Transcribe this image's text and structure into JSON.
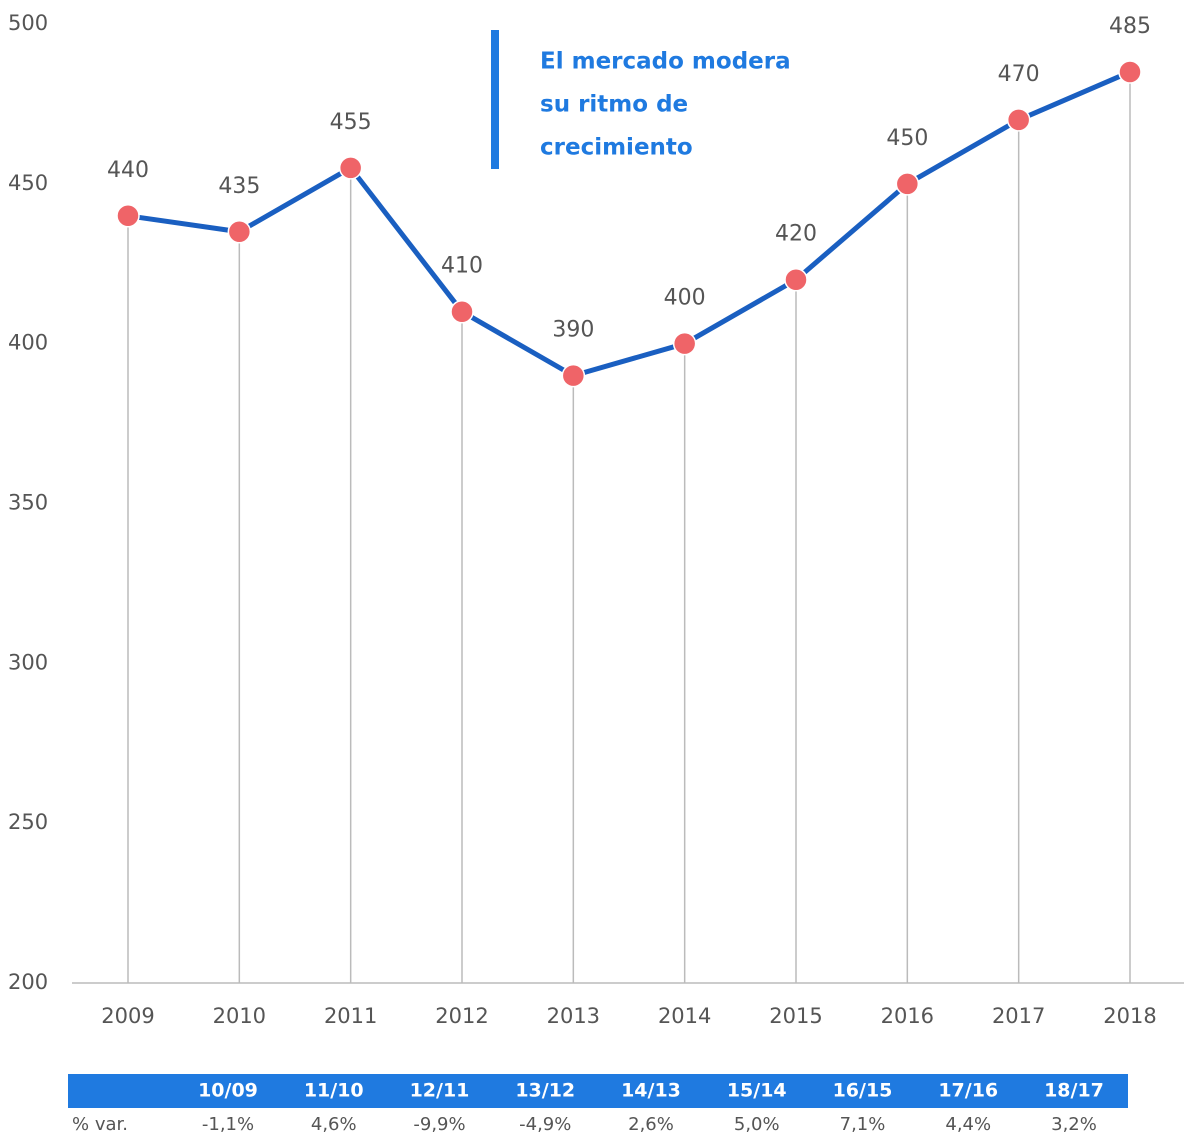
{
  "chart_data": {
    "type": "line",
    "categories": [
      "2009",
      "2010",
      "2011",
      "2012",
      "2013",
      "2014",
      "2015",
      "2016",
      "2017",
      "2018"
    ],
    "values": [
      440,
      435,
      455,
      410,
      390,
      400,
      420,
      450,
      470,
      485
    ],
    "color": "#1a5fc1",
    "marker_color": "#ef6468",
    "ylim": [
      200,
      500
    ],
    "yticks": [
      200,
      250,
      300,
      350,
      400,
      450,
      500
    ],
    "drop_lines": true,
    "annotation": [
      "El mercado modera",
      "su ritmo de",
      "crecimiento"
    ]
  },
  "table": {
    "columns": [
      "10/09",
      "11/10",
      "12/11",
      "13/12",
      "14/13",
      "15/14",
      "16/15",
      "17/16",
      "18/17"
    ],
    "row_label": "% var.",
    "values": [
      "-1,1%",
      "4,6%",
      "-9,9%",
      "-4,9%",
      "2,6%",
      "5,0%",
      "7,1%",
      "4,4%",
      "3,2%"
    ]
  }
}
